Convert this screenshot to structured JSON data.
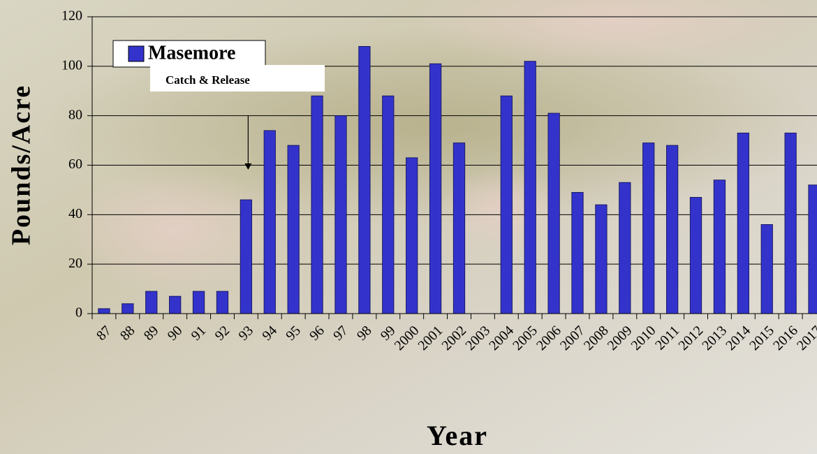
{
  "chart_data": {
    "type": "bar",
    "categories": [
      "87",
      "88",
      "89",
      "90",
      "91",
      "92",
      "93",
      "94",
      "95",
      "96",
      "97",
      "98",
      "99",
      "2000",
      "2001",
      "2002",
      "2003",
      "2004",
      "2005",
      "2006",
      "2007",
      "2008",
      "2009",
      "2010",
      "2011",
      "2012",
      "2013",
      "2014",
      "2015",
      "2016",
      "2017"
    ],
    "series": [
      {
        "name": "Masemore",
        "color": "#3333cc",
        "values": [
          2,
          4,
          9,
          7,
          9,
          9,
          46,
          74,
          68,
          88,
          80,
          108,
          88,
          63,
          101,
          69,
          null,
          88,
          102,
          81,
          49,
          44,
          53,
          69,
          68,
          47,
          54,
          73,
          36,
          73,
          52
        ]
      }
    ],
    "ylim": [
      0,
      120
    ],
    "yticks": [
      0,
      20,
      40,
      60,
      80,
      100,
      120
    ],
    "grid": true,
    "xlabel": "Year",
    "ylabel": "Pounds/Acre",
    "annotations": [
      {
        "text": "Catch & Release",
        "category": "93"
      }
    ]
  }
}
